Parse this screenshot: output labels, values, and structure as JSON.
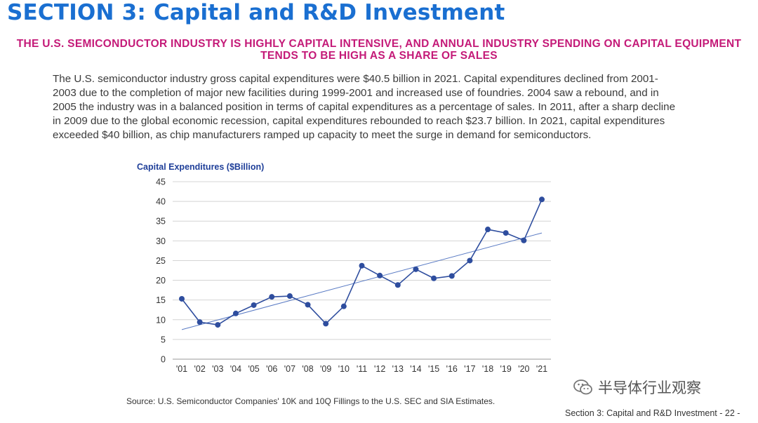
{
  "page": {
    "section_title": "SECTION 3: Capital and R&D Investment",
    "subtitle": "THE U.S. SEMICONDUCTOR INDUSTRY IS HIGHLY CAPITAL INTENSIVE, AND ANNUAL INDUSTRY SPENDING ON CAPITAL EQUIPMENT TENDS TO BE HIGH AS A SHARE OF SALES",
    "body": "The U.S. semiconductor industry gross capital expenditures were $40.5 billion in 2021. Capital expenditures declined from 2001-2003 due to the completion of major new facilities during 1999-2001 and increased use of foundries. 2004 saw a rebound, and in 2005 the industry was in a balanced position in terms of capital expenditures as a percentage of sales. In 2011, after a sharp decline in 2009 due to the global economic recession, capital expenditures rebounded to reach $23.7 billion. In 2021, capital expenditures exceeded $40 billion, as chip manufacturers ramped up capacity to meet the surge in demand for semiconductors.",
    "source": "Source: U.S. Semiconductor Companies' 10K and 10Q Fillings to the U.S. SEC and SIA Estimates.",
    "footer": "Section 3: Capital and R&D Investment  - 22 -",
    "watermark": "半导体行业观察"
  },
  "chart_data": {
    "type": "line",
    "title": "Capital Expenditures ($Billion)",
    "xlabel": "",
    "ylabel": "",
    "categories": [
      "'01",
      "'02",
      "'03",
      "'04",
      "'05",
      "'06",
      "'07",
      "'08",
      "'09",
      "'10",
      "'11",
      "'12",
      "'13",
      "'14",
      "'15",
      "'16",
      "'17",
      "'18",
      "'19",
      "'20",
      "'21"
    ],
    "series": [
      {
        "values": [
          15.3,
          9.4,
          8.7,
          11.6,
          13.7,
          15.8,
          16.0,
          13.8,
          9.0,
          13.4,
          23.7,
          21.2,
          18.8,
          22.8,
          20.5,
          21.1,
          25.0,
          32.9,
          32.0,
          30.1,
          40.5
        ],
        "color": "#2e4d9e"
      }
    ],
    "trendline": {
      "start": 7.5,
      "end": 32.0,
      "color": "#5a7bc4"
    },
    "ylim": [
      0,
      45
    ],
    "yticks": [
      0,
      5,
      10,
      15,
      20,
      25,
      30,
      35,
      40,
      45
    ],
    "grid": true,
    "legend": "none"
  }
}
